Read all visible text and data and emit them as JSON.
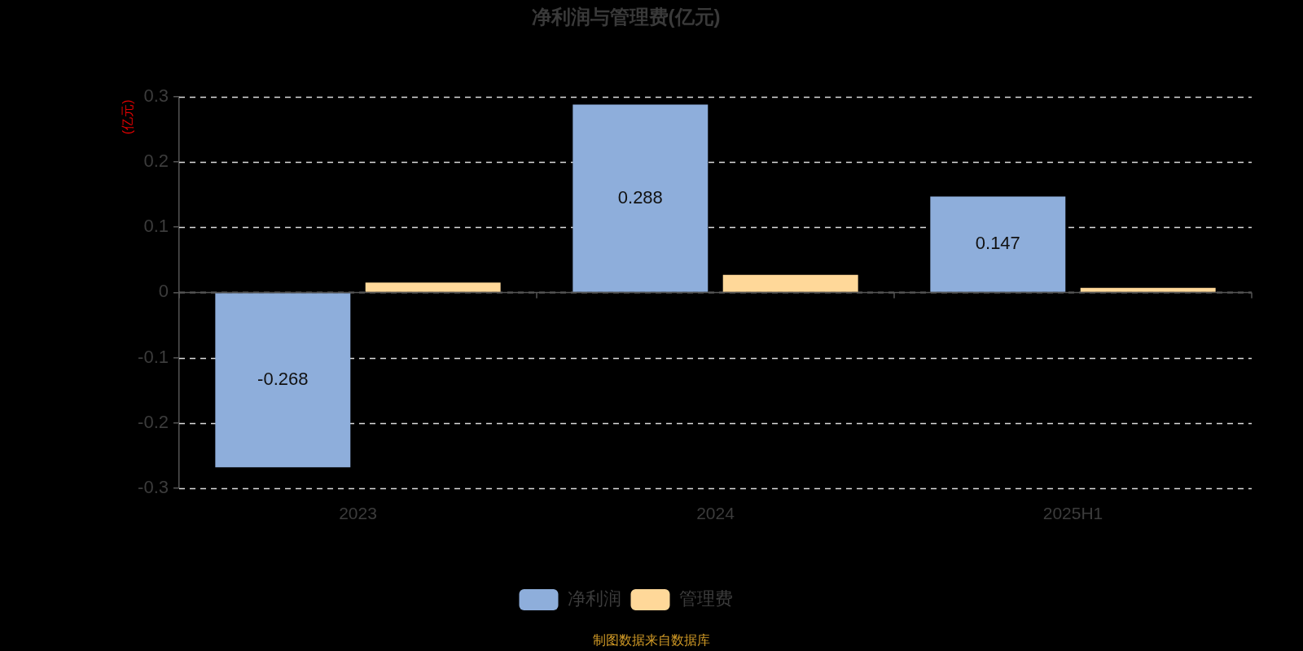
{
  "chart_data": {
    "type": "bar",
    "title": "净利润与管理费(亿元)",
    "ylabel": "(亿元)",
    "categories": [
      "2023",
      "2024",
      "2025H1"
    ],
    "series": [
      {
        "name": "净利润",
        "color": "#8eaedb",
        "values": [
          -0.268,
          0.288,
          0.147
        ],
        "value_labels": [
          "-0.268",
          "0.288",
          "0.147"
        ]
      },
      {
        "name": "管理费",
        "color": "#ffd899",
        "values": [
          0.015,
          0.027,
          0.007
        ]
      }
    ],
    "ylim": [
      -0.3,
      0.3
    ],
    "yticks": [
      -0.3,
      -0.2,
      -0.1,
      0,
      0.1,
      0.2,
      0.3
    ],
    "grid": "y",
    "legend": "bottom",
    "annotations": [
      "制图数据来自数据库"
    ]
  }
}
